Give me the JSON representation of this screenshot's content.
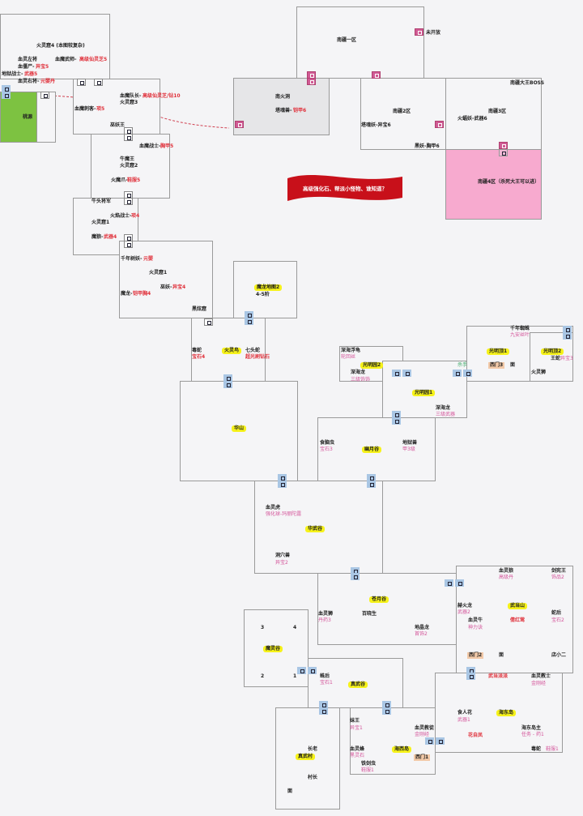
{
  "colors": {
    "peach_garden": "#7dc241",
    "nanjiang4": "#f7aacf",
    "banner": "#c8101a",
    "highlight": "#f6f21a",
    "door_blue": "#a9c6e4",
    "door_pink": "#d05a94",
    "drop_red": "#e0303a",
    "drop_pink": "#d4549a"
  },
  "banner": {
    "text": "高级强化石、帮派小怪物、谁知道？"
  },
  "huolingku4": {
    "title": "火灵窟4 (本图较复杂)",
    "a": "血灵左将",
    "b": "血魔武师-",
    "b2": "高级仙灵芝5",
    "c": "血僵尸-",
    "c2": "异宝5",
    "d": "地狱战士-",
    "d2": "武器5",
    "e": "血灵右将-",
    "e2": "元婴丹"
  },
  "taoyuan": {
    "title": "桃源"
  },
  "huolingku3": {
    "a": "血魔队长-",
    "a2": "高级仙灵芝/钻10",
    "title": "火灵窟3",
    "b": "血魔刺客-",
    "b2": "项5",
    "c": "巫妖王"
  },
  "huolingku2": {
    "a": "血魔战士-",
    "a2": "胸甲5",
    "b": "牛魔王",
    "title": "火灵窟2",
    "c": "火魔爪-",
    "c2": "鞋服5"
  },
  "huolingku1a": {
    "a": "牛头将军",
    "b": "火焰战士-",
    "b2": "项4",
    "title": "火灵窟1",
    "c": "魔狼-",
    "c2": "武器4"
  },
  "huolingku1b": {
    "a": "千年树妖-",
    "a2": "元婴",
    "title": "火灵窟1",
    "b": "巫妖-",
    "b2": "异宝4",
    "c": "魔龙-",
    "c2": "铠甲胸4",
    "d": "黑炫窟"
  },
  "molong": {
    "title": "魔龙地图2",
    "sub": "4-5阶"
  },
  "huolingniao": {
    "a": "毒蛇",
    "a2": "宝石4",
    "title": "火灵鸟",
    "b": "七头蛇",
    "b2": "超光刷钻石"
  },
  "huashan": {
    "title": "华山"
  },
  "nanjiang": {
    "z1": "南疆一区",
    "closed": "未开放",
    "nhd": "南火洞",
    "nhd_a": "塔魂兽-",
    "nhd_a2": "铠甲6",
    "z2": "南疆2区",
    "z2_a": "塔魂妖-异宝6",
    "z2_b": "黑妖-胸甲6",
    "boss": "南疆大王BOSS",
    "z3": "南疆3区",
    "z3_a": "火蝠妖-武器6",
    "z4": "南疆4区（杀死大王可以进）"
  },
  "gmy2": {
    "a": "深海浮龟",
    "a2": "轮回丝",
    "title": "光明园2",
    "b": "深海龙",
    "b2": "三级饰饰"
  },
  "gmy1": {
    "title": "光明园1",
    "a": "深海龙",
    "a2": "三级武器",
    "killer": "杀手"
  },
  "gmd": {
    "a": "千年蜘蛛",
    "a2": "九安丝叶",
    "t1": "光明顶1",
    "west": "西门3",
    "noodle": "面",
    "t2": "光明顶2",
    "b": "王蛇",
    "b2": "异宝3",
    "c": "火灵狮"
  },
  "youyue": {
    "a": "食脑虫",
    "a2": "宝石3",
    "title": "幽月谷",
    "b": "地狱兽",
    "b2": "甲3级"
  },
  "huawu": {
    "a": "血灵虎",
    "a2": "强化球-玛丽陀露",
    "title": "华武谷",
    "b": "洞穴兽",
    "b2": "异宝2"
  },
  "cangyue": {
    "title": "苍月谷",
    "a": "血灵狮",
    "a2": "丹药3",
    "b": "百晓生",
    "c": "地晶龙",
    "c2": "首饰2"
  },
  "wudang": {
    "a": "血灵狼",
    "a2": "高级丹",
    "b": "剑宪王",
    "b2": "饰品2",
    "c": "赫火龙",
    "c2": "武器2",
    "title": "武当山",
    "d": "蛇后",
    "d2": "宝石2",
    "e": "血灵牛",
    "e2": "神力诀",
    "f": "倩红莺",
    "west": "西门2",
    "noodle": "面",
    "g": "店小二"
  },
  "moling": {
    "n3": "3",
    "n4": "4",
    "title": "魔灵谷",
    "n2": "2",
    "n1": "1"
  },
  "zhenwugu": {
    "a": "蛛后",
    "a2": "宝石1",
    "title": "真武谷"
  },
  "zhenwucun": {
    "a": "长老",
    "title": "真武村",
    "b": "村长",
    "c": "面"
  },
  "haixi": {
    "a": "妹王",
    "a2": "异宝1",
    "b": "血灵教徒",
    "b2": "金刚经",
    "c": "血灵蜂",
    "c2": "黑灵石",
    "title": "海西岛",
    "west": "西门1",
    "d": "铁剑虫",
    "d2": "鞋服1"
  },
  "haidong": {
    "a": "武当派派",
    "b": "血灵教士",
    "b2": "金刚经",
    "c": "食人花",
    "c2": "武器1",
    "title": "海东岛",
    "d": "海东岛主",
    "d2": "任务 - 药1",
    "e": "花自凤",
    "f": "毒蛇",
    "f2": "鞋服1"
  }
}
